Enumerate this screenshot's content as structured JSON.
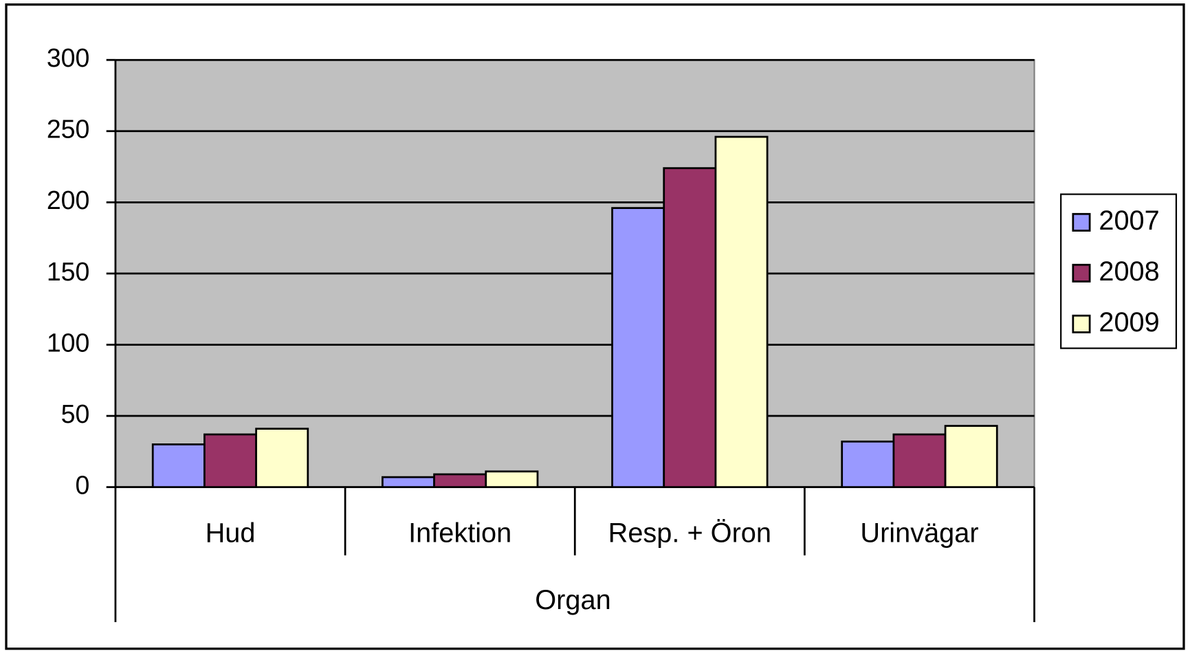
{
  "chart_data": {
    "type": "bar",
    "categories": [
      "Hud",
      "Infektion",
      "Resp. + Öron",
      "Urinvägar"
    ],
    "xlabel": "Organ",
    "series": [
      {
        "name": "2007",
        "color": "#9999ff",
        "values": [
          30,
          7,
          196,
          32
        ]
      },
      {
        "name": "2008",
        "color": "#993366",
        "values": [
          37,
          9,
          224,
          37
        ]
      },
      {
        "name": "2009",
        "color": "#ffffcc",
        "values": [
          41,
          11,
          246,
          43
        ]
      }
    ],
    "ylim": [
      0,
      300
    ],
    "yticks": [
      0,
      50,
      100,
      150,
      200,
      250,
      300
    ],
    "grid": true,
    "legend": "right"
  }
}
